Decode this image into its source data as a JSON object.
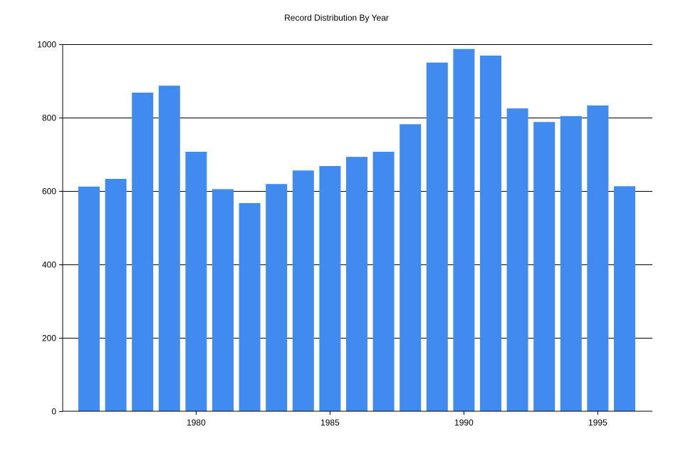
{
  "chart_data": {
    "type": "bar",
    "title": "Record Distribution By Year",
    "xlabel": "",
    "ylabel": "",
    "categories": [
      "1976",
      "1977",
      "1978",
      "1979",
      "1980",
      "1981",
      "1982",
      "1983",
      "1984",
      "1985",
      "1986",
      "1987",
      "1988",
      "1989",
      "1990",
      "1991",
      "1992",
      "1993",
      "1994",
      "1995",
      "1996"
    ],
    "values": [
      612,
      633,
      868,
      887,
      707,
      605,
      567,
      619,
      656,
      668,
      693,
      707,
      782,
      950,
      987,
      969,
      825,
      788,
      804,
      833,
      613
    ],
    "x_tick_labels": [
      "1980",
      "1985",
      "1990",
      "1995"
    ],
    "y_ticks": [
      0,
      200,
      400,
      600,
      800,
      1000
    ],
    "ylim": [
      0,
      1000
    ],
    "grid": "horizontal",
    "bar_color": "#418AF0"
  }
}
